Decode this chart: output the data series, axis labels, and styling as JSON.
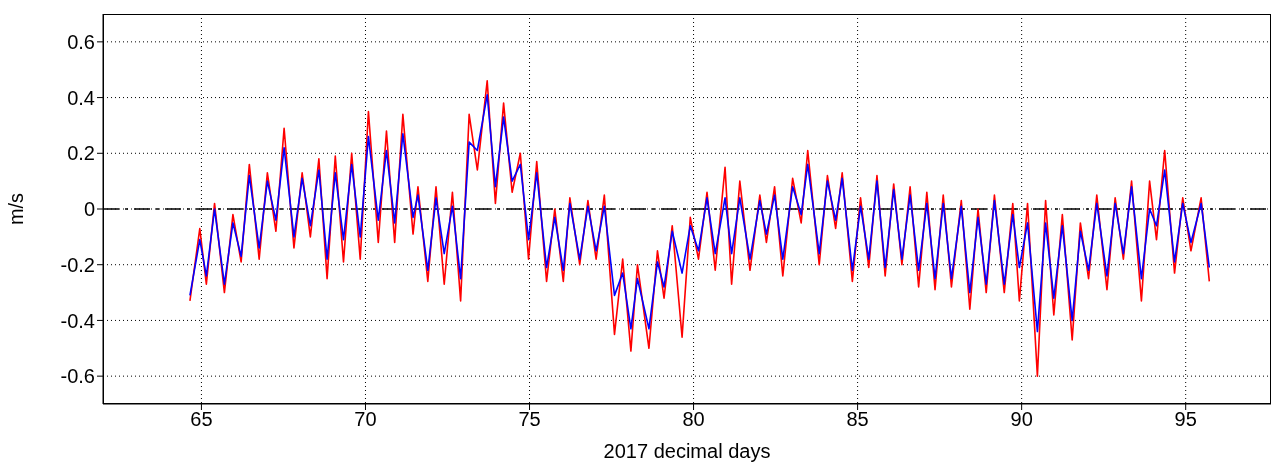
{
  "chart_data": {
    "type": "line",
    "xlabel": "2017 decimal days",
    "ylabel": "m/s",
    "x": [
      64.65,
      64.95,
      65.15,
      65.4,
      65.7,
      65.96,
      66.21,
      66.46,
      66.76,
      67.01,
      67.27,
      67.52,
      67.82,
      68.07,
      68.32,
      68.58,
      68.83,
      69.08,
      69.33,
      69.58,
      69.84,
      70.09,
      70.39,
      70.64,
      70.89,
      71.14,
      71.45,
      71.6,
      71.9,
      72.15,
      72.4,
      72.65,
      72.9,
      73.16,
      73.41,
      73.71,
      73.96,
      74.21,
      74.47,
      74.72,
      74.97,
      75.22,
      75.52,
      75.77,
      76.03,
      76.23,
      76.53,
      76.78,
      77.03,
      77.28,
      77.59,
      77.84,
      78.09,
      78.29,
      78.64,
      78.9,
      79.1,
      79.35,
      79.65,
      79.9,
      80.15,
      80.41,
      80.66,
      80.96,
      81.16,
      81.41,
      81.72,
      82.02,
      82.22,
      82.47,
      82.72,
      83.02,
      83.28,
      83.48,
      83.83,
      84.08,
      84.33,
      84.53,
      84.84,
      85.09,
      85.34,
      85.59,
      85.84,
      86.1,
      86.35,
      86.6,
      86.86,
      87.11,
      87.36,
      87.61,
      87.86,
      88.16,
      88.42,
      88.67,
      88.92,
      89.17,
      89.47,
      89.73,
      89.93,
      90.18,
      90.48,
      90.73,
      90.98,
      91.24,
      91.54,
      91.79,
      92.04,
      92.29,
      92.6,
      92.85,
      93.1,
      93.35,
      93.65,
      93.9,
      94.11,
      94.36,
      94.66,
      94.91,
      95.16,
      95.47,
      95.72
    ],
    "series": [
      {
        "color": "#ff0000",
        "values": [
          -0.33,
          -0.07,
          -0.27,
          0.02,
          -0.3,
          -0.02,
          -0.19,
          0.16,
          -0.18,
          0.13,
          -0.08,
          0.29,
          -0.14,
          0.13,
          -0.1,
          0.18,
          -0.25,
          0.19,
          -0.19,
          0.2,
          -0.18,
          0.35,
          -0.12,
          0.28,
          -0.12,
          0.34,
          -0.09,
          0.08,
          -0.26,
          0.08,
          -0.27,
          0.06,
          -0.33,
          0.34,
          0.14,
          0.46,
          0.02,
          0.38,
          0.06,
          0.2,
          -0.18,
          0.17,
          -0.26,
          0.0,
          -0.26,
          0.04,
          -0.2,
          0.03,
          -0.18,
          0.05,
          -0.45,
          -0.18,
          -0.51,
          -0.2,
          -0.5,
          -0.15,
          -0.32,
          -0.06,
          -0.46,
          -0.03,
          -0.18,
          0.06,
          -0.22,
          0.15,
          -0.27,
          0.1,
          -0.22,
          0.05,
          -0.12,
          0.08,
          -0.24,
          0.11,
          -0.05,
          0.21,
          -0.2,
          0.12,
          -0.07,
          0.13,
          -0.26,
          0.04,
          -0.21,
          0.12,
          -0.24,
          0.09,
          -0.2,
          0.08,
          -0.28,
          0.06,
          -0.29,
          0.05,
          -0.28,
          0.03,
          -0.36,
          0.0,
          -0.3,
          0.05,
          -0.3,
          0.02,
          -0.33,
          0.02,
          -0.6,
          0.03,
          -0.38,
          -0.02,
          -0.47,
          -0.05,
          -0.25,
          0.05,
          -0.29,
          0.04,
          -0.18,
          0.1,
          -0.33,
          0.1,
          -0.11,
          0.21,
          -0.23,
          0.04,
          -0.15,
          0.04,
          -0.26
        ]
      },
      {
        "color": "#0000ff",
        "values": [
          -0.31,
          -0.11,
          -0.24,
          0.0,
          -0.27,
          -0.05,
          -0.17,
          0.12,
          -0.14,
          0.1,
          -0.04,
          0.22,
          -0.1,
          0.11,
          -0.06,
          0.14,
          -0.18,
          0.13,
          -0.11,
          0.16,
          -0.1,
          0.26,
          -0.04,
          0.21,
          -0.05,
          0.27,
          -0.03,
          0.05,
          -0.22,
          0.04,
          -0.16,
          0.01,
          -0.25,
          0.24,
          0.21,
          0.41,
          0.08,
          0.33,
          0.1,
          0.16,
          -0.11,
          0.13,
          -0.21,
          -0.03,
          -0.22,
          0.02,
          -0.18,
          0.01,
          -0.15,
          0.01,
          -0.31,
          -0.23,
          -0.43,
          -0.25,
          -0.43,
          -0.19,
          -0.28,
          -0.08,
          -0.23,
          -0.06,
          -0.15,
          0.04,
          -0.16,
          0.04,
          -0.16,
          0.04,
          -0.18,
          0.03,
          -0.09,
          0.05,
          -0.18,
          0.08,
          -0.02,
          0.16,
          -0.16,
          0.1,
          -0.04,
          0.11,
          -0.22,
          0.01,
          -0.18,
          0.1,
          -0.21,
          0.07,
          -0.18,
          0.05,
          -0.22,
          0.02,
          -0.25,
          0.02,
          -0.25,
          0.01,
          -0.3,
          -0.03,
          -0.27,
          0.03,
          -0.27,
          -0.02,
          -0.21,
          -0.05,
          -0.44,
          -0.05,
          -0.32,
          -0.06,
          -0.4,
          -0.08,
          -0.22,
          0.02,
          -0.24,
          0.02,
          -0.16,
          0.08,
          -0.25,
          0.0,
          -0.06,
          0.14,
          -0.19,
          0.02,
          -0.12,
          0.02,
          -0.21
        ]
      }
    ],
    "xlim": [
      62,
      97.6
    ],
    "xticks": [
      65,
      70,
      75,
      80,
      85,
      90,
      95
    ],
    "ylim": [
      -0.7,
      0.7
    ],
    "yticks": [
      -0.6,
      -0.4,
      -0.2,
      0,
      0.2,
      0.4,
      0.6
    ],
    "ref_lines": [
      {
        "axis": "y",
        "value": 0,
        "color": "#000000",
        "line_style": "dashed"
      }
    ],
    "grid": true,
    "legend": false,
    "marker": "none",
    "line_style": "solid"
  }
}
